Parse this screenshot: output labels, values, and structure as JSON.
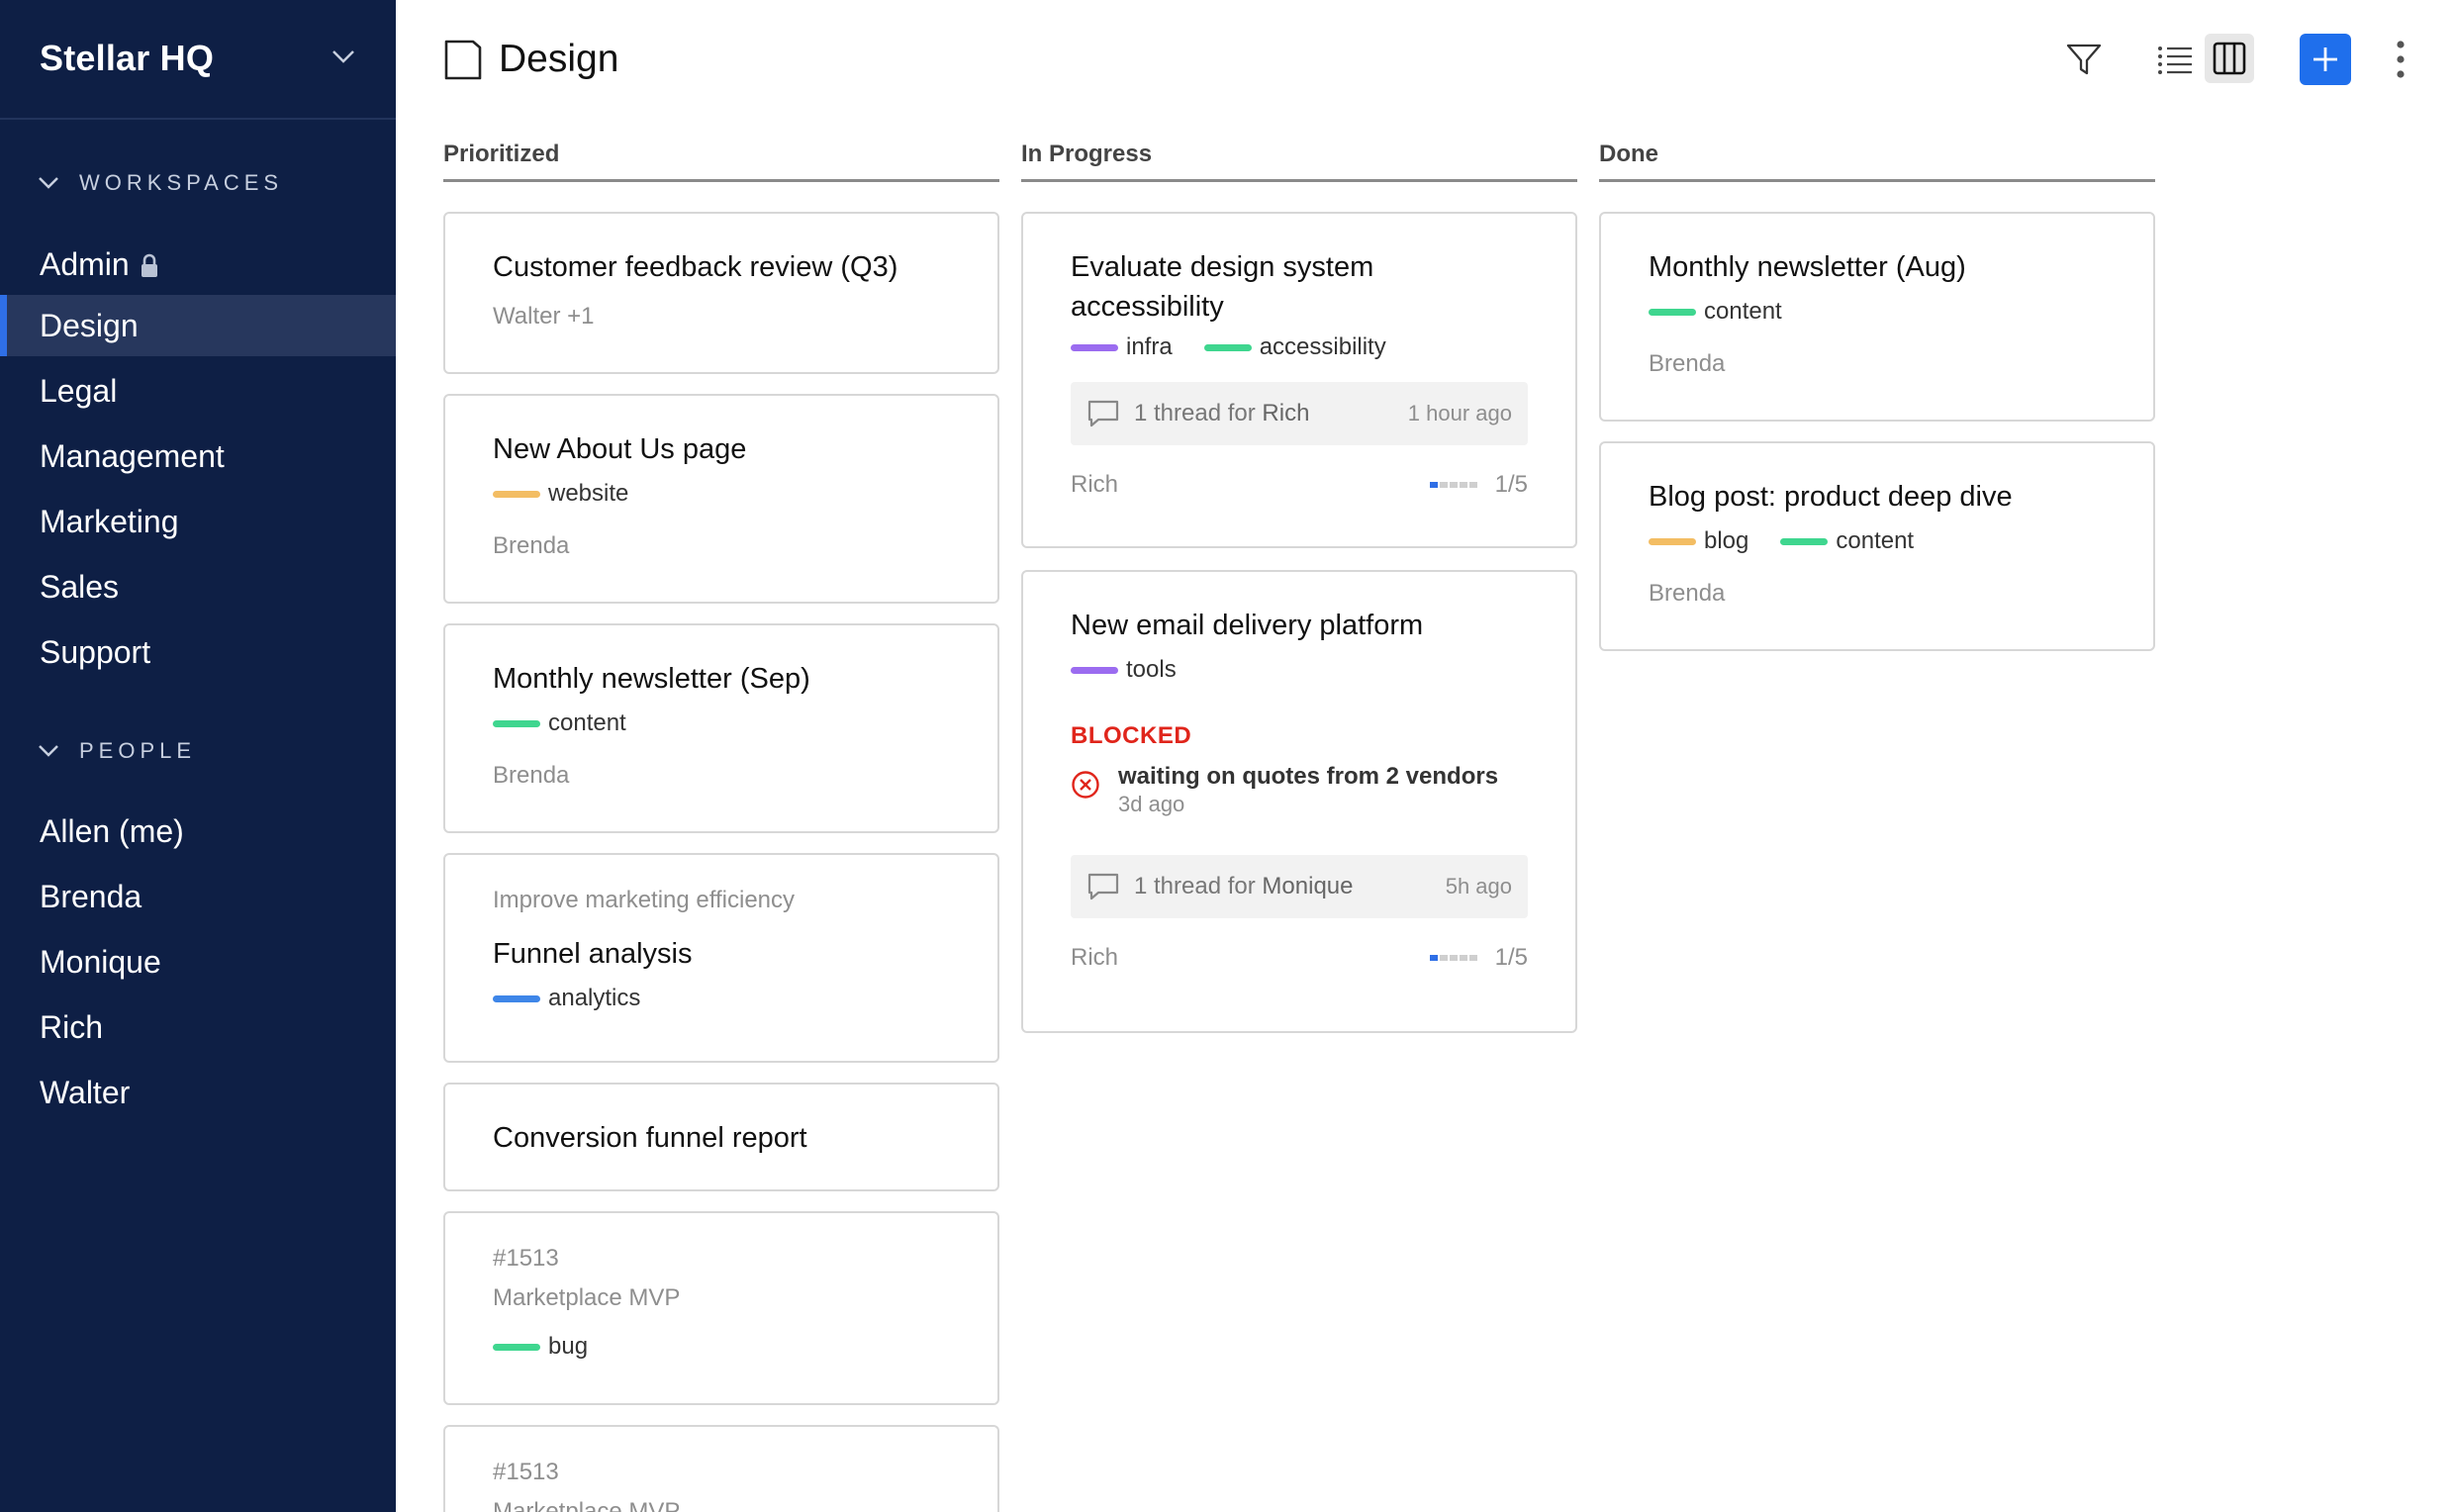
{
  "sidebar": {
    "brand": "Stellar HQ",
    "workspaces_header": "WORKSPACES",
    "workspaces": [
      {
        "label": "Admin",
        "locked": true
      },
      {
        "label": "Design",
        "active": true
      },
      {
        "label": "Legal"
      },
      {
        "label": "Management"
      },
      {
        "label": "Marketing"
      },
      {
        "label": "Sales"
      },
      {
        "label": "Support"
      }
    ],
    "people_header": "PEOPLE",
    "people": [
      "Allen (me)",
      "Brenda",
      "Monique",
      "Rich",
      "Walter"
    ]
  },
  "header": {
    "title": "Design",
    "add_label": "+"
  },
  "colors": {
    "sidebar_bg": "#0e1f45",
    "accent": "#1f6fec",
    "tag_purple": "#9b6cf0",
    "tag_green": "#3fd68f",
    "tag_orange": "#f3bd63",
    "tag_blue": "#3e86e8",
    "blocked_red": "#e0251b"
  },
  "columns": [
    {
      "title": "Prioritized"
    },
    {
      "title": "In Progress"
    },
    {
      "title": "Done"
    }
  ],
  "cards": {
    "p1": {
      "title": "Customer feedback review (Q3)",
      "meta": "Walter +1"
    },
    "p2": {
      "title": "New About Us page",
      "tag1": "website",
      "meta": "Brenda"
    },
    "p3": {
      "title": "Monthly newsletter (Sep)",
      "tag1": "content",
      "meta": "Brenda"
    },
    "p4": {
      "parent": "Improve marketing efficiency",
      "title": "Funnel analysis",
      "tag1": "analytics"
    },
    "p5": {
      "title": "Conversion funnel report"
    },
    "p6": {
      "id": "#1513",
      "parent": "Marketplace MVP",
      "tag1": "bug"
    },
    "p7": {
      "id": "#1513",
      "parent": "Marketplace MVP"
    },
    "i1": {
      "title_l1": "Evaluate design system",
      "title_l2": "accessibility",
      "tag1": "infra",
      "tag2": "accessibility",
      "thread_prefix": "1 thread for ",
      "thread_name": "Rich",
      "thread_time": "1 hour ago",
      "meta": "Rich",
      "progress": "1/5"
    },
    "i2": {
      "title": "New email delivery platform",
      "tag1": "tools",
      "blocked_label": "BLOCKED",
      "blocked_text": "waiting on quotes from 2 vendors",
      "blocked_time": "3d ago",
      "thread_prefix": "1 thread for ",
      "thread_name": "Monique",
      "thread_time": "5h ago",
      "meta": "Rich",
      "progress": "1/5"
    },
    "d1": {
      "title": "Monthly newsletter (Aug)",
      "tag1": "content",
      "meta": "Brenda"
    },
    "d2": {
      "title": "Blog post: product deep dive",
      "tag1": "blog",
      "tag2": "content",
      "meta": "Brenda"
    }
  }
}
